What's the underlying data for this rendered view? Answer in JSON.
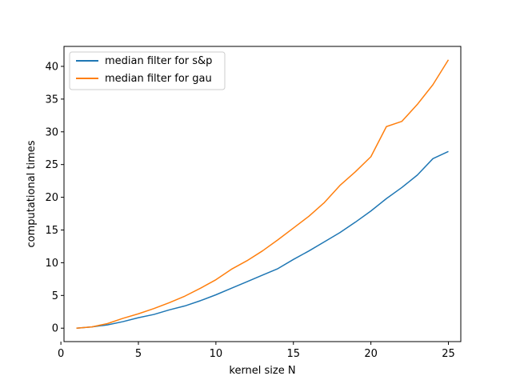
{
  "chart_data": {
    "type": "line",
    "title": "",
    "xlabel": "kernel size N",
    "ylabel": "computational times",
    "xlim": [
      0.2,
      25.8
    ],
    "ylim": [
      -2.05,
      43.05
    ],
    "xticks": [
      0,
      5,
      10,
      15,
      20,
      25
    ],
    "yticks": [
      0,
      5,
      10,
      15,
      20,
      25,
      30,
      35,
      40
    ],
    "grid": false,
    "legend_position": "top-left",
    "x": [
      1,
      2,
      3,
      4,
      5,
      6,
      7,
      8,
      9,
      10,
      11,
      12,
      13,
      14,
      15,
      16,
      17,
      18,
      19,
      20,
      21,
      22,
      23,
      24,
      25
    ],
    "series": [
      {
        "name": "median filter for s&p",
        "color": "#1f77b4",
        "values": [
          0.0,
          0.2,
          0.5,
          1.0,
          1.6,
          2.1,
          2.8,
          3.4,
          4.2,
          5.1,
          6.1,
          7.1,
          8.1,
          9.1,
          10.5,
          11.8,
          13.2,
          14.6,
          16.2,
          17.9,
          19.8,
          21.5,
          23.4,
          25.9,
          27.0
        ]
      },
      {
        "name": "median filter for gau",
        "color": "#ff7f0e",
        "values": [
          0.0,
          0.2,
          0.7,
          1.5,
          2.2,
          3.0,
          3.9,
          4.9,
          6.1,
          7.4,
          9.0,
          10.3,
          11.8,
          13.5,
          15.3,
          17.1,
          19.2,
          21.8,
          23.9,
          26.2,
          30.8,
          31.6,
          34.2,
          37.2,
          41.0
        ]
      }
    ]
  }
}
